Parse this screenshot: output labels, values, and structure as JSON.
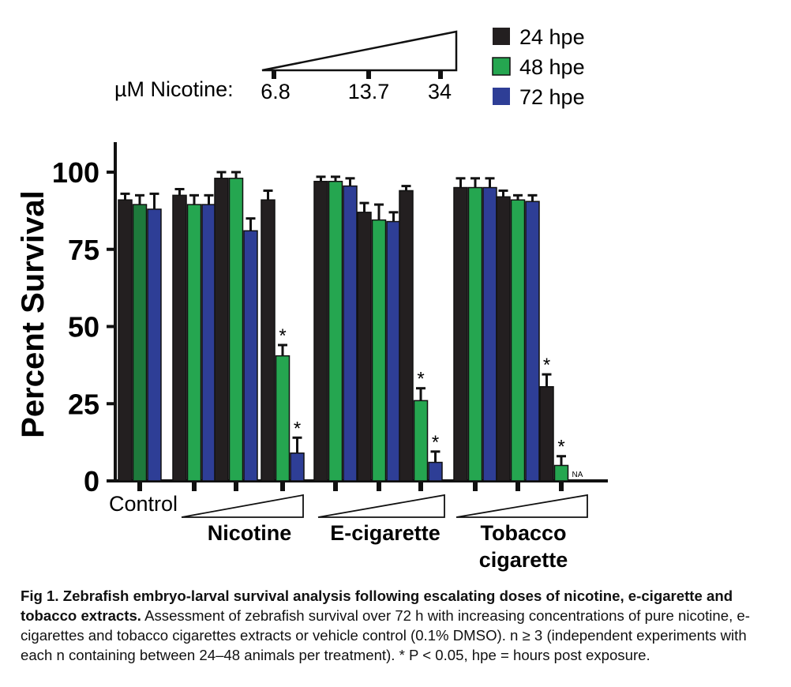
{
  "chart_data": {
    "type": "bar",
    "ylabel": "Percent Survival",
    "ylim": [
      0,
      100
    ],
    "yticks": [
      "0",
      "25",
      "50",
      "75",
      "100"
    ],
    "series": [
      {
        "name": "24 hpe",
        "color": "#231f20"
      },
      {
        "name": "48 hpe",
        "color": "#25a650"
      },
      {
        "name": "72 hpe",
        "color": "#2e3e96"
      }
    ],
    "groups": [
      {
        "category": "Control",
        "values": [
          91,
          89.5,
          88
        ],
        "errors": [
          2,
          3,
          5
        ],
        "sig": [
          false,
          false,
          false
        ],
        "na": [
          false,
          false,
          false
        ],
        "colors": [
          "#231f20",
          "#1e7a3c",
          "#2e3e96"
        ]
      },
      {
        "category": "Nicotine 6.8 µM",
        "values": [
          92.5,
          89.5,
          89.5
        ],
        "errors": [
          2,
          3,
          3
        ],
        "sig": [
          false,
          false,
          false
        ],
        "na": [
          false,
          false,
          false
        ]
      },
      {
        "category": "Nicotine 13.7 µM",
        "values": [
          98,
          98,
          81
        ],
        "errors": [
          2,
          2,
          4
        ],
        "sig": [
          false,
          false,
          false
        ],
        "na": [
          false,
          false,
          false
        ]
      },
      {
        "category": "Nicotine 34 µM",
        "values": [
          91,
          40.5,
          9
        ],
        "errors": [
          3,
          3.5,
          5
        ],
        "sig": [
          false,
          true,
          true
        ],
        "na": [
          false,
          false,
          false
        ]
      },
      {
        "category": "E-cigarette low",
        "values": [
          97,
          97,
          95.5
        ],
        "errors": [
          1.5,
          1.5,
          2.5
        ],
        "sig": [
          false,
          false,
          false
        ],
        "na": [
          false,
          false,
          false
        ]
      },
      {
        "category": "E-cigarette mid",
        "values": [
          87,
          84.5,
          84
        ],
        "errors": [
          3,
          5,
          3
        ],
        "sig": [
          false,
          false,
          false
        ],
        "na": [
          false,
          false,
          false
        ]
      },
      {
        "category": "E-cigarette high",
        "values": [
          94,
          26,
          6
        ],
        "errors": [
          1.5,
          4,
          3.5
        ],
        "sig": [
          false,
          true,
          true
        ],
        "na": [
          false,
          false,
          false
        ]
      },
      {
        "category": "Tobacco cigarette low",
        "values": [
          95,
          95,
          95
        ],
        "errors": [
          3,
          3,
          3
        ],
        "sig": [
          false,
          false,
          false
        ],
        "na": [
          false,
          false,
          false
        ]
      },
      {
        "category": "Tobacco cigarette mid",
        "values": [
          92,
          91,
          90.5
        ],
        "errors": [
          2,
          1.5,
          2
        ],
        "sig": [
          false,
          false,
          false
        ],
        "na": [
          false,
          false,
          false
        ]
      },
      {
        "category": "Tobacco cigarette high",
        "values": [
          30.5,
          5,
          0
        ],
        "errors": [
          4,
          3,
          0
        ],
        "sig": [
          true,
          true,
          false
        ],
        "na": [
          false,
          false,
          true
        ]
      }
    ],
    "sig_label": "*",
    "na_label": "NA",
    "group_labels": [
      {
        "text": "Control"
      },
      {
        "text": "Nicotine"
      },
      {
        "text": "E-cigarette"
      },
      {
        "text": "Tobacco"
      },
      {
        "text": "cigarette"
      }
    ],
    "concentration_key": {
      "label": "µM Nicotine:",
      "ticks": [
        "6.8",
        "13.7",
        "34"
      ]
    }
  },
  "caption": {
    "title": "Fig 1.  Zebrafish embryo-larval survival analysis following escalating doses of nicotine, e-cigarette and tobacco extracts.",
    "body": " Assessment of zebrafish survival over 72 h with increasing concentrations of pure nicotine, e-cigarettes and tobacco cigarettes extracts or vehicle control (0.1% DMSO). n ≥ 3 (independent experiments with each n containing between 24–48 animals per treatment). * P < 0.05, hpe = hours post exposure."
  }
}
